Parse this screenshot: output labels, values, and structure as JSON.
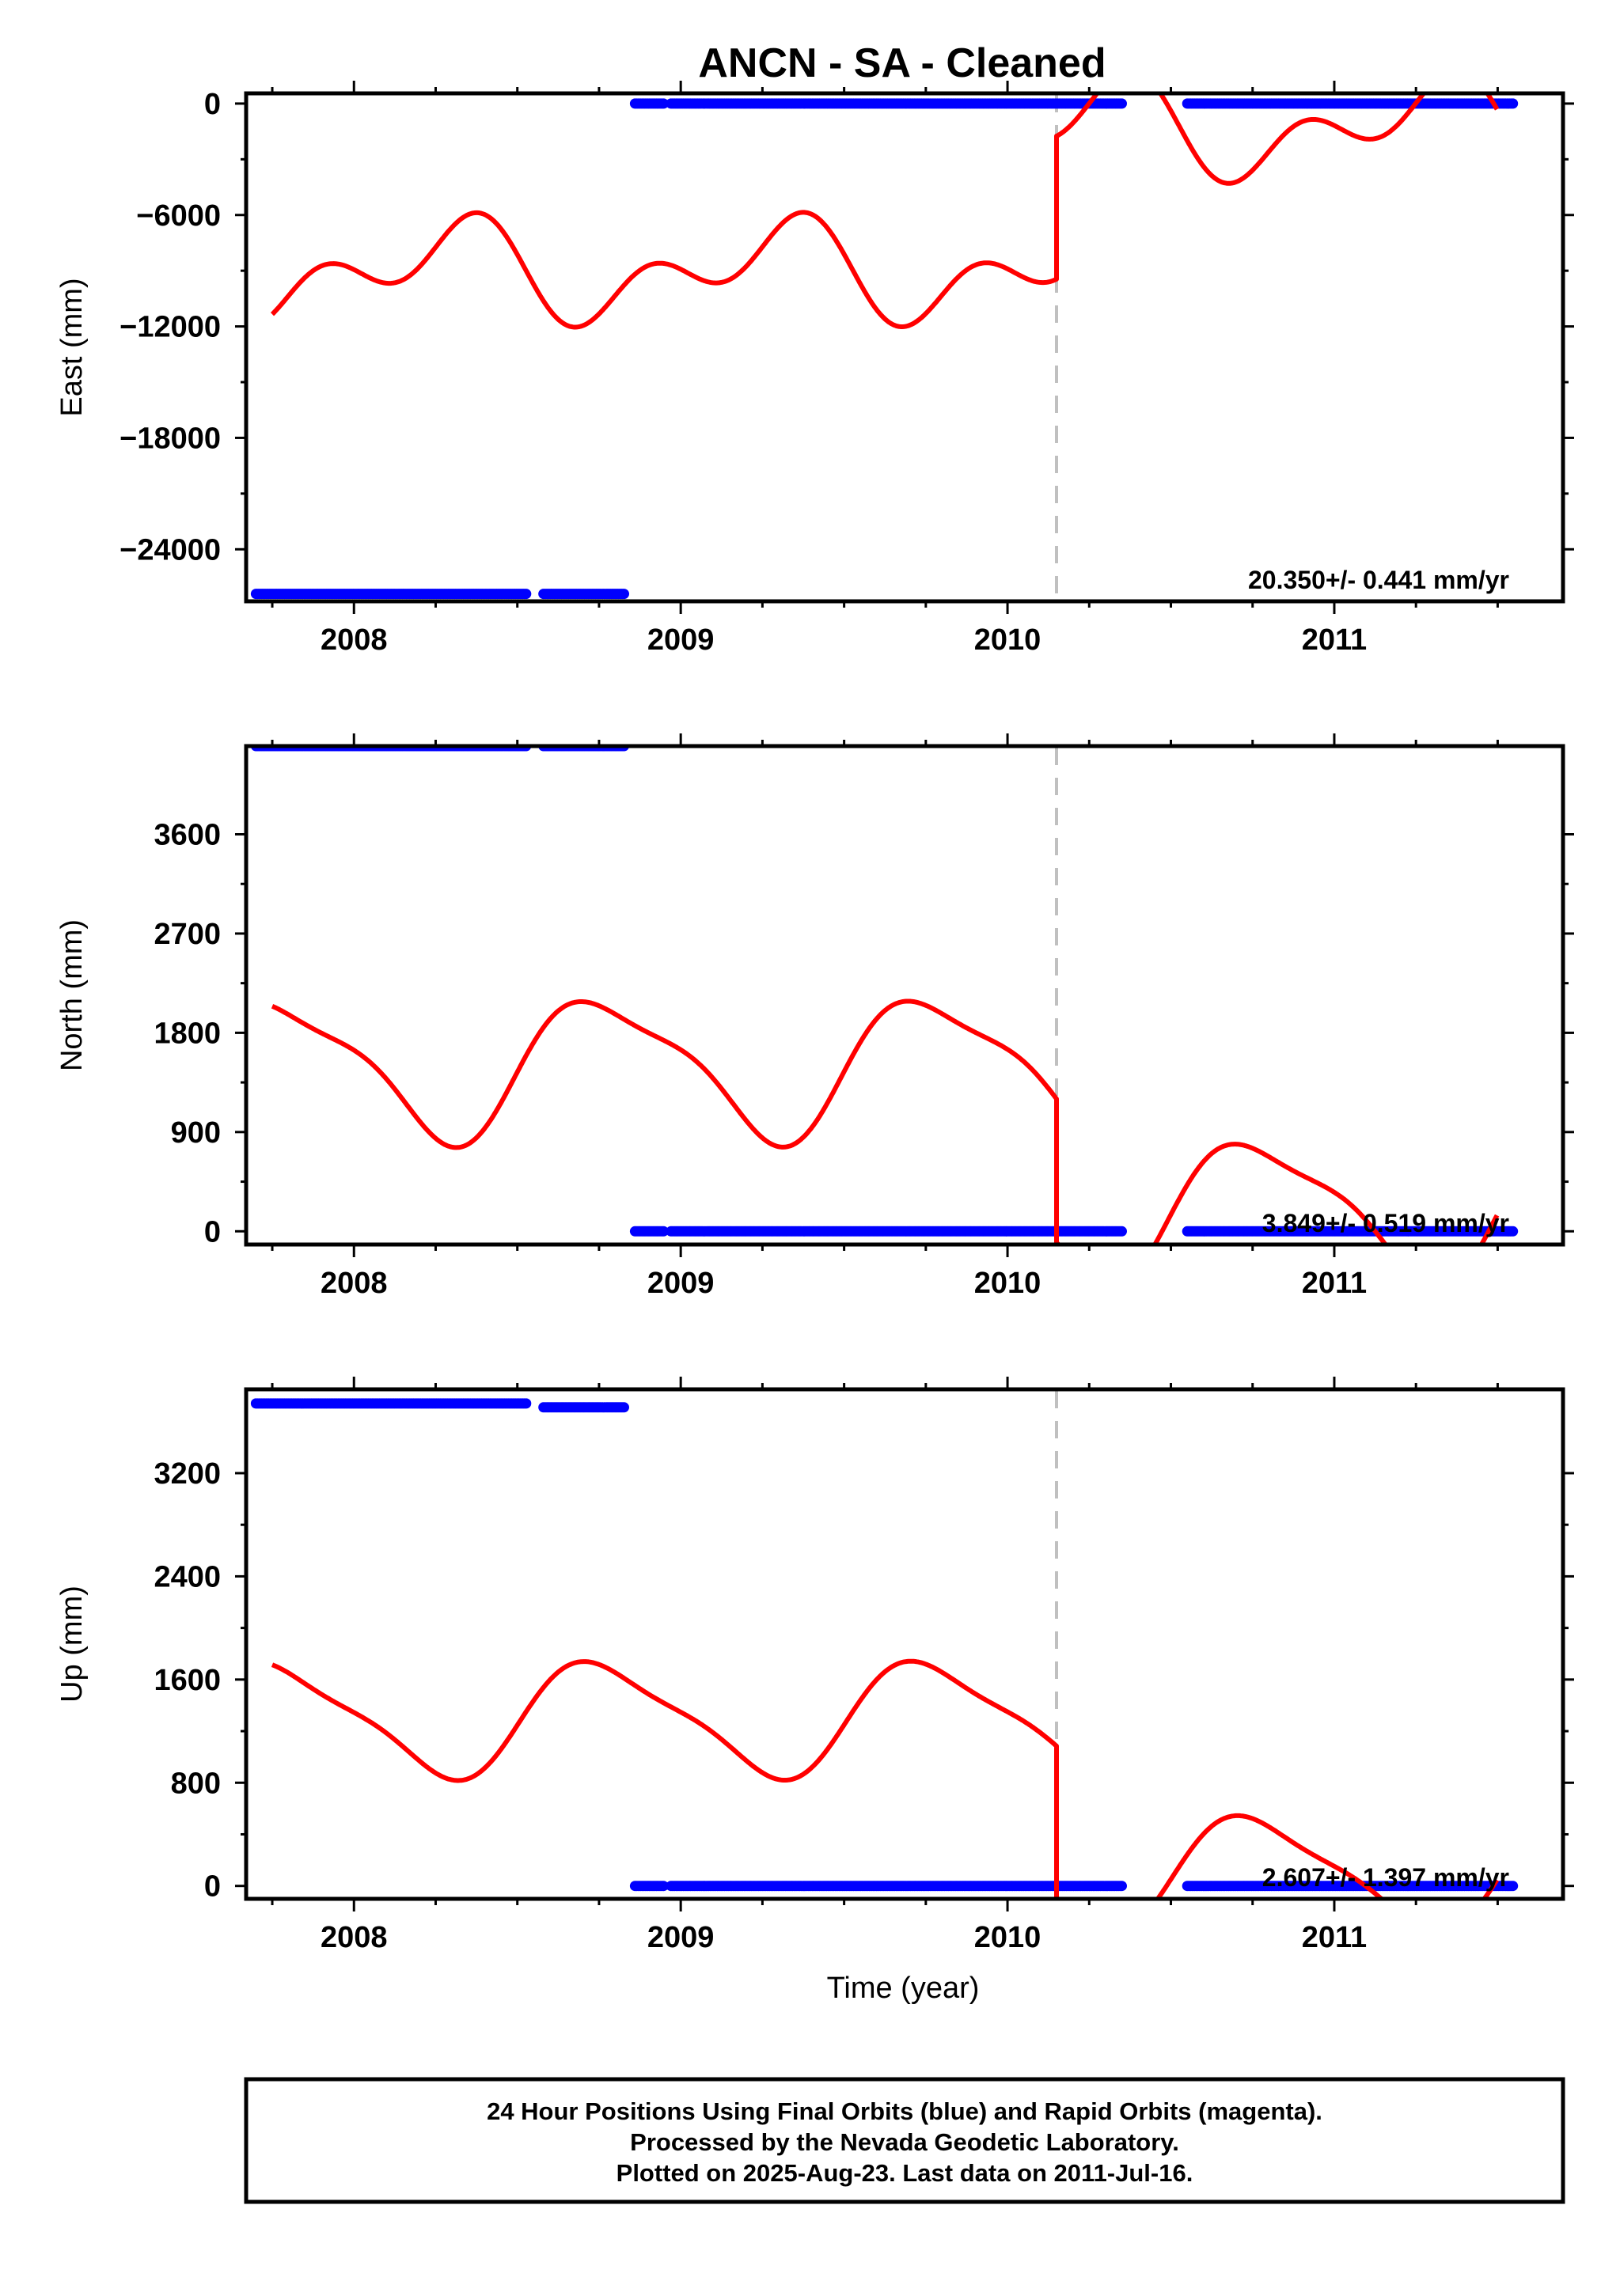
{
  "chart_data": {
    "type": "scatter",
    "title": "ANCN  - SA - Cleaned",
    "xlabel": "Time (year)",
    "xlim": [
      2007.67,
      2011.7
    ],
    "xticks": [
      2008,
      2009,
      2010,
      2011
    ],
    "xtick_labels": [
      "2008",
      "2009",
      "2010",
      "2011"
    ],
    "offset_epoch": 2010.15,
    "colors": {
      "data": "#0000ff",
      "model": "#ff0000",
      "offset_line": "#c0c0c0",
      "frame": "#000000"
    },
    "final_segments": [
      [
        2007.7,
        2008.53
      ],
      [
        2008.58,
        2008.83
      ],
      [
        2008.86,
        2008.95
      ],
      [
        2008.97,
        2010.35
      ],
      [
        2010.55,
        2011.55
      ]
    ],
    "panels": [
      {
        "ylabel": "East (mm)",
        "ylim": [
          -26800,
          550
        ],
        "yticks": [
          0,
          -6000,
          -12000,
          -18000,
          -24000
        ],
        "ytick_labels": [
          "0",
          "−6000",
          "−12000",
          "−18000",
          "−24000"
        ],
        "rate_text": "20.350+/- 0.441 mm/yr",
        "data_levels": [
          -26400,
          -26400,
          0,
          0,
          0,
          0
        ],
        "model": {
          "before": {
            "a": -9000,
            "b": 20.35,
            "c1": -400,
            "s1": 1800,
            "c2": 500,
            "s2": -1600
          },
          "after": {
            "a": -1300,
            "b": 20.35,
            "c1": -400,
            "s1": 1800,
            "c2": 500,
            "s2": -1600
          }
        }
      },
      {
        "ylabel": "North (mm)",
        "ylim": [
          -120,
          4400
        ],
        "yticks": [
          0,
          900,
          1800,
          2700,
          3600
        ],
        "ytick_labels": [
          "0",
          "900",
          "1800",
          "2700",
          "3600"
        ],
        "rate_text": "3.849+/- 0.519 mm/yr",
        "data_levels": [
          4400,
          4400,
          0,
          0,
          0,
          0
        ],
        "model": {
          "before": {
            "a": 1500,
            "b": 3.849,
            "c1": 100,
            "s1": -600,
            "c2": 50,
            "s2": 150
          },
          "after": {
            "a": 200,
            "b": 3.849,
            "c1": 100,
            "s1": -600,
            "c2": 50,
            "s2": 150
          }
        }
      },
      {
        "ylabel": "Up (mm)",
        "ylim": [
          -100,
          3850
        ],
        "yticks": [
          0,
          800,
          1600,
          2400,
          3200
        ],
        "ytick_labels": [
          "0",
          "800",
          "1600",
          "2400",
          "3200"
        ],
        "rate_text": "2.607+/- 1.397 mm/yr",
        "data_levels": [
          3740,
          3710,
          0,
          0,
          0,
          0
        ],
        "model": {
          "before": {
            "a": 1300,
            "b": 2.607,
            "c1": 50,
            "s1": -420,
            "c2": 0,
            "s2": 100
          },
          "after": {
            "a": 100,
            "b": 2.607,
            "c1": 50,
            "s1": -420,
            "c2": 0,
            "s2": 100
          }
        }
      }
    ],
    "footer": [
      "24 Hour Positions Using Final Orbits (blue) and Rapid Orbits (magenta).",
      "Processed by the Nevada Geodetic Laboratory.",
      "Plotted on 2025-Aug-23. Last data on 2011-Jul-16."
    ]
  }
}
